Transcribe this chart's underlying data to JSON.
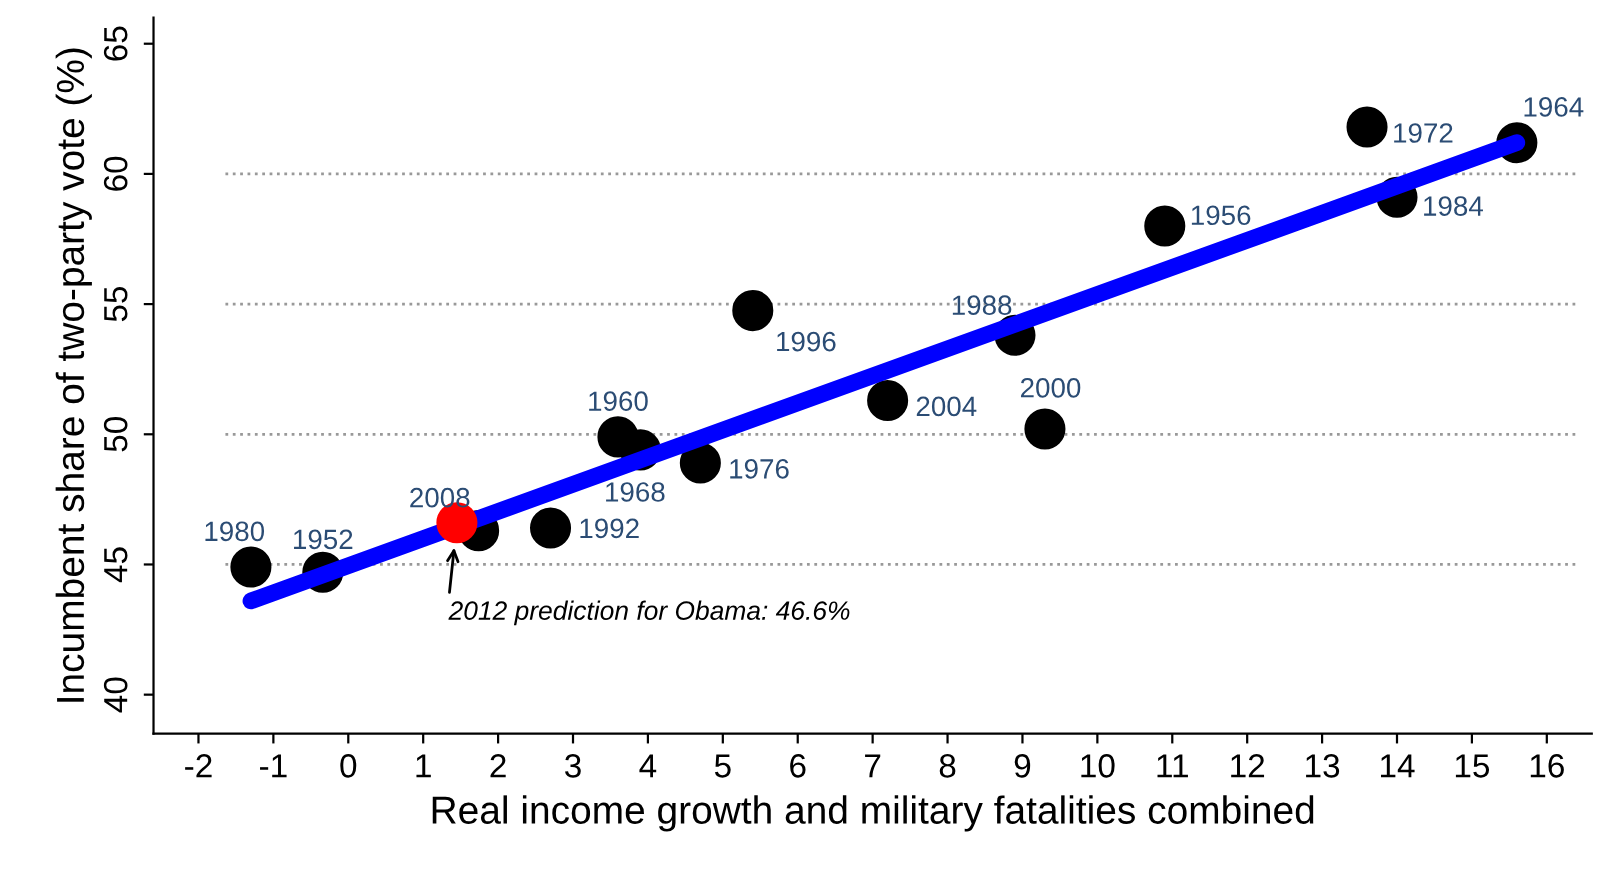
{
  "chart_data": {
    "type": "scatter",
    "xlabel": "Real income growth and military fatalities combined",
    "ylabel": "Incumbent share of two-party vote (%)",
    "xlim": [
      -2.6,
      16.6
    ],
    "xticks": [
      -2,
      -1,
      0,
      1,
      2,
      3,
      4,
      5,
      6,
      7,
      8,
      9,
      10,
      11,
      12,
      13,
      14,
      15,
      16
    ],
    "ylim": [
      38.5,
      66
    ],
    "yticks": [
      40,
      45,
      50,
      55,
      60,
      65
    ],
    "series": [
      {
        "type": "line",
        "color": "#0000ff",
        "x": [
          -1.3,
          15.6
        ],
        "values": [
          43.6,
          61.2
        ]
      },
      {
        "marker": "circle",
        "color": "#000000",
        "x": [
          -1.3,
          -0.34,
          1.74,
          2.7,
          3.6,
          3.9,
          4.7,
          5.4,
          7.2,
          8.9,
          9.3,
          10.9,
          13.6,
          14.0,
          15.6
        ],
        "values": [
          44.9,
          44.7,
          46.3,
          46.4,
          49.9,
          49.4,
          48.9,
          54.75,
          51.3,
          53.8,
          50.2,
          58.0,
          61.8,
          59.1,
          61.2
        ]
      },
      {
        "marker": "circle",
        "color": "#ff0000",
        "x": [
          1.45
        ],
        "values": [
          46.6
        ]
      }
    ],
    "ref_lines": [
      {
        "axis": "y",
        "value": 45,
        "color": "#999999",
        "line_style": "dotted"
      },
      {
        "axis": "y",
        "value": 50,
        "color": "#999999",
        "line_style": "dotted"
      },
      {
        "axis": "y",
        "value": 55,
        "color": "#999999",
        "line_style": "dotted"
      },
      {
        "axis": "y",
        "value": 60,
        "color": "#999999",
        "line_style": "dotted"
      }
    ],
    "annotations": [
      {
        "text": "2012 prediction for Obama: 46.6%",
        "x": 1.45,
        "y": 46.6
      },
      {
        "text": "1980",
        "x": -1.3,
        "y": 44.9
      },
      {
        "text": "1952",
        "x": -0.34,
        "y": 44.7
      },
      {
        "text": "2008",
        "x": 1.74,
        "y": 46.3
      },
      {
        "text": "1992",
        "x": 2.7,
        "y": 46.4
      },
      {
        "text": "1960",
        "x": 3.6,
        "y": 49.9
      },
      {
        "text": "1968",
        "x": 3.9,
        "y": 49.4
      },
      {
        "text": "1976",
        "x": 4.7,
        "y": 48.9
      },
      {
        "text": "1996",
        "x": 5.4,
        "y": 54.75
      },
      {
        "text": "2004",
        "x": 7.2,
        "y": 51.3
      },
      {
        "text": "1988",
        "x": 8.9,
        "y": 53.8
      },
      {
        "text": "2000",
        "x": 9.3,
        "y": 50.2
      },
      {
        "text": "1956",
        "x": 10.9,
        "y": 58.0
      },
      {
        "text": "1972",
        "x": 13.6,
        "y": 61.8
      },
      {
        "text": "1984",
        "x": 14.0,
        "y": 59.1
      },
      {
        "text": "1964",
        "x": 15.6,
        "y": 61.2
      }
    ]
  }
}
